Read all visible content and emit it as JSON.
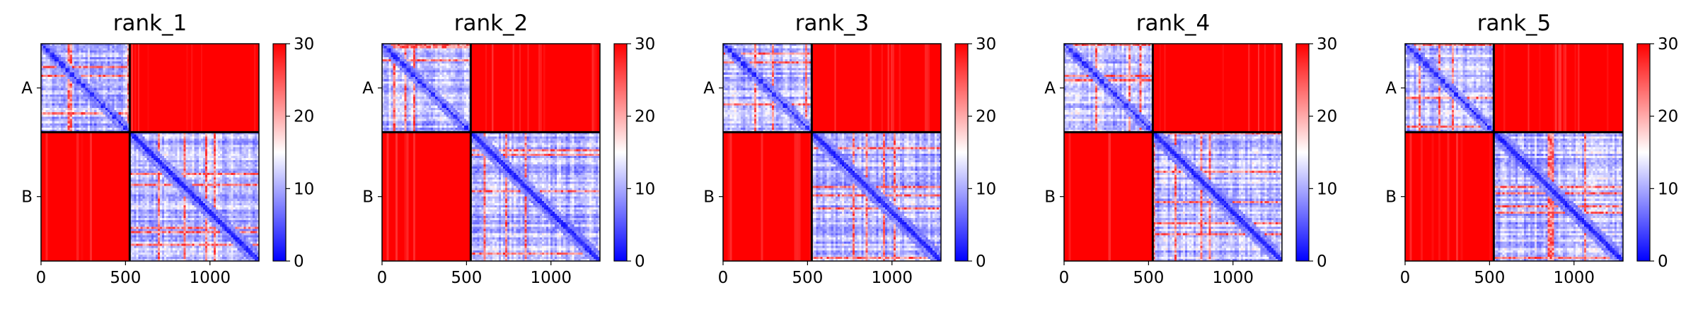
{
  "chart_data": [
    {
      "type": "heatmap",
      "title": "rank_1",
      "chains": [
        "A",
        "B"
      ],
      "chain_boundary": 525,
      "length": 1290,
      "xticks": [
        0,
        500,
        1000
      ],
      "colorbar": {
        "min": 0,
        "max": 30,
        "ticks": [
          0,
          10,
          20,
          30
        ],
        "colormap": "bwr"
      },
      "blocks": [
        {
          "rows": "A",
          "cols": "A",
          "level": "mixed low (diagonal near 0)"
        },
        {
          "rows": "A",
          "cols": "B",
          "level": 30
        },
        {
          "rows": "B",
          "cols": "A",
          "level": 30
        },
        {
          "rows": "B",
          "cols": "B",
          "level": "mixed low (diagonal near 0)"
        }
      ]
    },
    {
      "type": "heatmap",
      "title": "rank_2",
      "chains": [
        "A",
        "B"
      ],
      "chain_boundary": 525,
      "length": 1290,
      "xticks": [
        0,
        500,
        1000
      ],
      "colorbar": {
        "min": 0,
        "max": 30,
        "ticks": [
          0,
          10,
          20,
          30
        ],
        "colormap": "bwr"
      },
      "blocks": [
        {
          "rows": "A",
          "cols": "A",
          "level": "mixed low (diagonal near 0)"
        },
        {
          "rows": "A",
          "cols": "B",
          "level": 30
        },
        {
          "rows": "B",
          "cols": "A",
          "level": 30
        },
        {
          "rows": "B",
          "cols": "B",
          "level": "mixed low (diagonal near 0)"
        }
      ]
    },
    {
      "type": "heatmap",
      "title": "rank_3",
      "chains": [
        "A",
        "B"
      ],
      "chain_boundary": 525,
      "length": 1290,
      "xticks": [
        0,
        500,
        1000
      ],
      "colorbar": {
        "min": 0,
        "max": 30,
        "ticks": [
          0,
          10,
          20,
          30
        ],
        "colormap": "bwr"
      },
      "blocks": [
        {
          "rows": "A",
          "cols": "A",
          "level": "mixed low (diagonal near 0)"
        },
        {
          "rows": "A",
          "cols": "B",
          "level": 30
        },
        {
          "rows": "B",
          "cols": "A",
          "level": 30
        },
        {
          "rows": "B",
          "cols": "B",
          "level": "mixed low (diagonal near 0)"
        }
      ]
    },
    {
      "type": "heatmap",
      "title": "rank_4",
      "chains": [
        "A",
        "B"
      ],
      "chain_boundary": 525,
      "length": 1290,
      "xticks": [
        0,
        500,
        1000
      ],
      "colorbar": {
        "min": 0,
        "max": 30,
        "ticks": [
          0,
          10,
          20,
          30
        ],
        "colormap": "bwr"
      },
      "blocks": [
        {
          "rows": "A",
          "cols": "A",
          "level": "mixed low (diagonal near 0)"
        },
        {
          "rows": "A",
          "cols": "B",
          "level": 30
        },
        {
          "rows": "B",
          "cols": "A",
          "level": 30
        },
        {
          "rows": "B",
          "cols": "B",
          "level": "mixed low (diagonal near 0)"
        }
      ]
    },
    {
      "type": "heatmap",
      "title": "rank_5",
      "chains": [
        "A",
        "B"
      ],
      "chain_boundary": 525,
      "length": 1290,
      "xticks": [
        0,
        500,
        1000
      ],
      "colorbar": {
        "min": 0,
        "max": 30,
        "ticks": [
          0,
          10,
          20,
          30
        ],
        "colormap": "bwr"
      },
      "blocks": [
        {
          "rows": "A",
          "cols": "A",
          "level": "mixed low (diagonal near 0)"
        },
        {
          "rows": "A",
          "cols": "B",
          "level": 30
        },
        {
          "rows": "B",
          "cols": "A",
          "level": 30
        },
        {
          "rows": "B",
          "cols": "B",
          "level": "mixed low (diagonal near 0)"
        }
      ]
    }
  ],
  "colors": {
    "low": "#0000ff",
    "mid": "#ffffff",
    "high": "#ff0000"
  }
}
